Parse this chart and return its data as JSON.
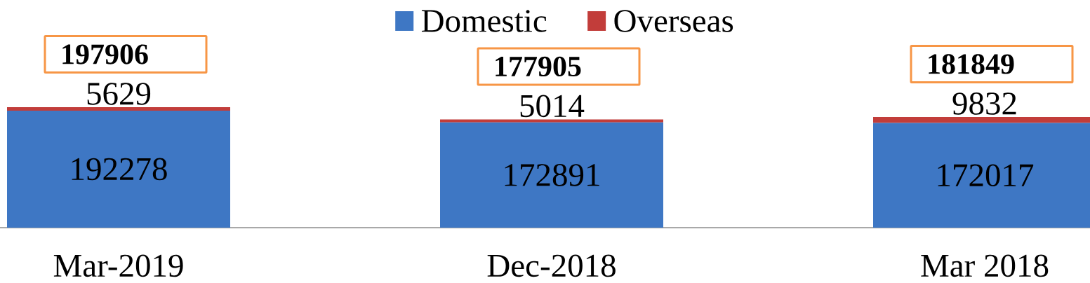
{
  "chart_data": {
    "type": "bar",
    "stacked": true,
    "categories": [
      "Mar-2019",
      "Dec-2018",
      "Mar 2018"
    ],
    "series": [
      {
        "name": "Domestic",
        "color": "#3e77c4",
        "values": [
          192278,
          172891,
          172017
        ]
      },
      {
        "name": "Overseas",
        "color": "#c23d3a",
        "values": [
          5629,
          5014,
          9832
        ]
      }
    ],
    "totals": [
      "197906",
      "177905",
      "181849"
    ],
    "data_labels": true,
    "legend": "top",
    "tick_labels": "x"
  }
}
